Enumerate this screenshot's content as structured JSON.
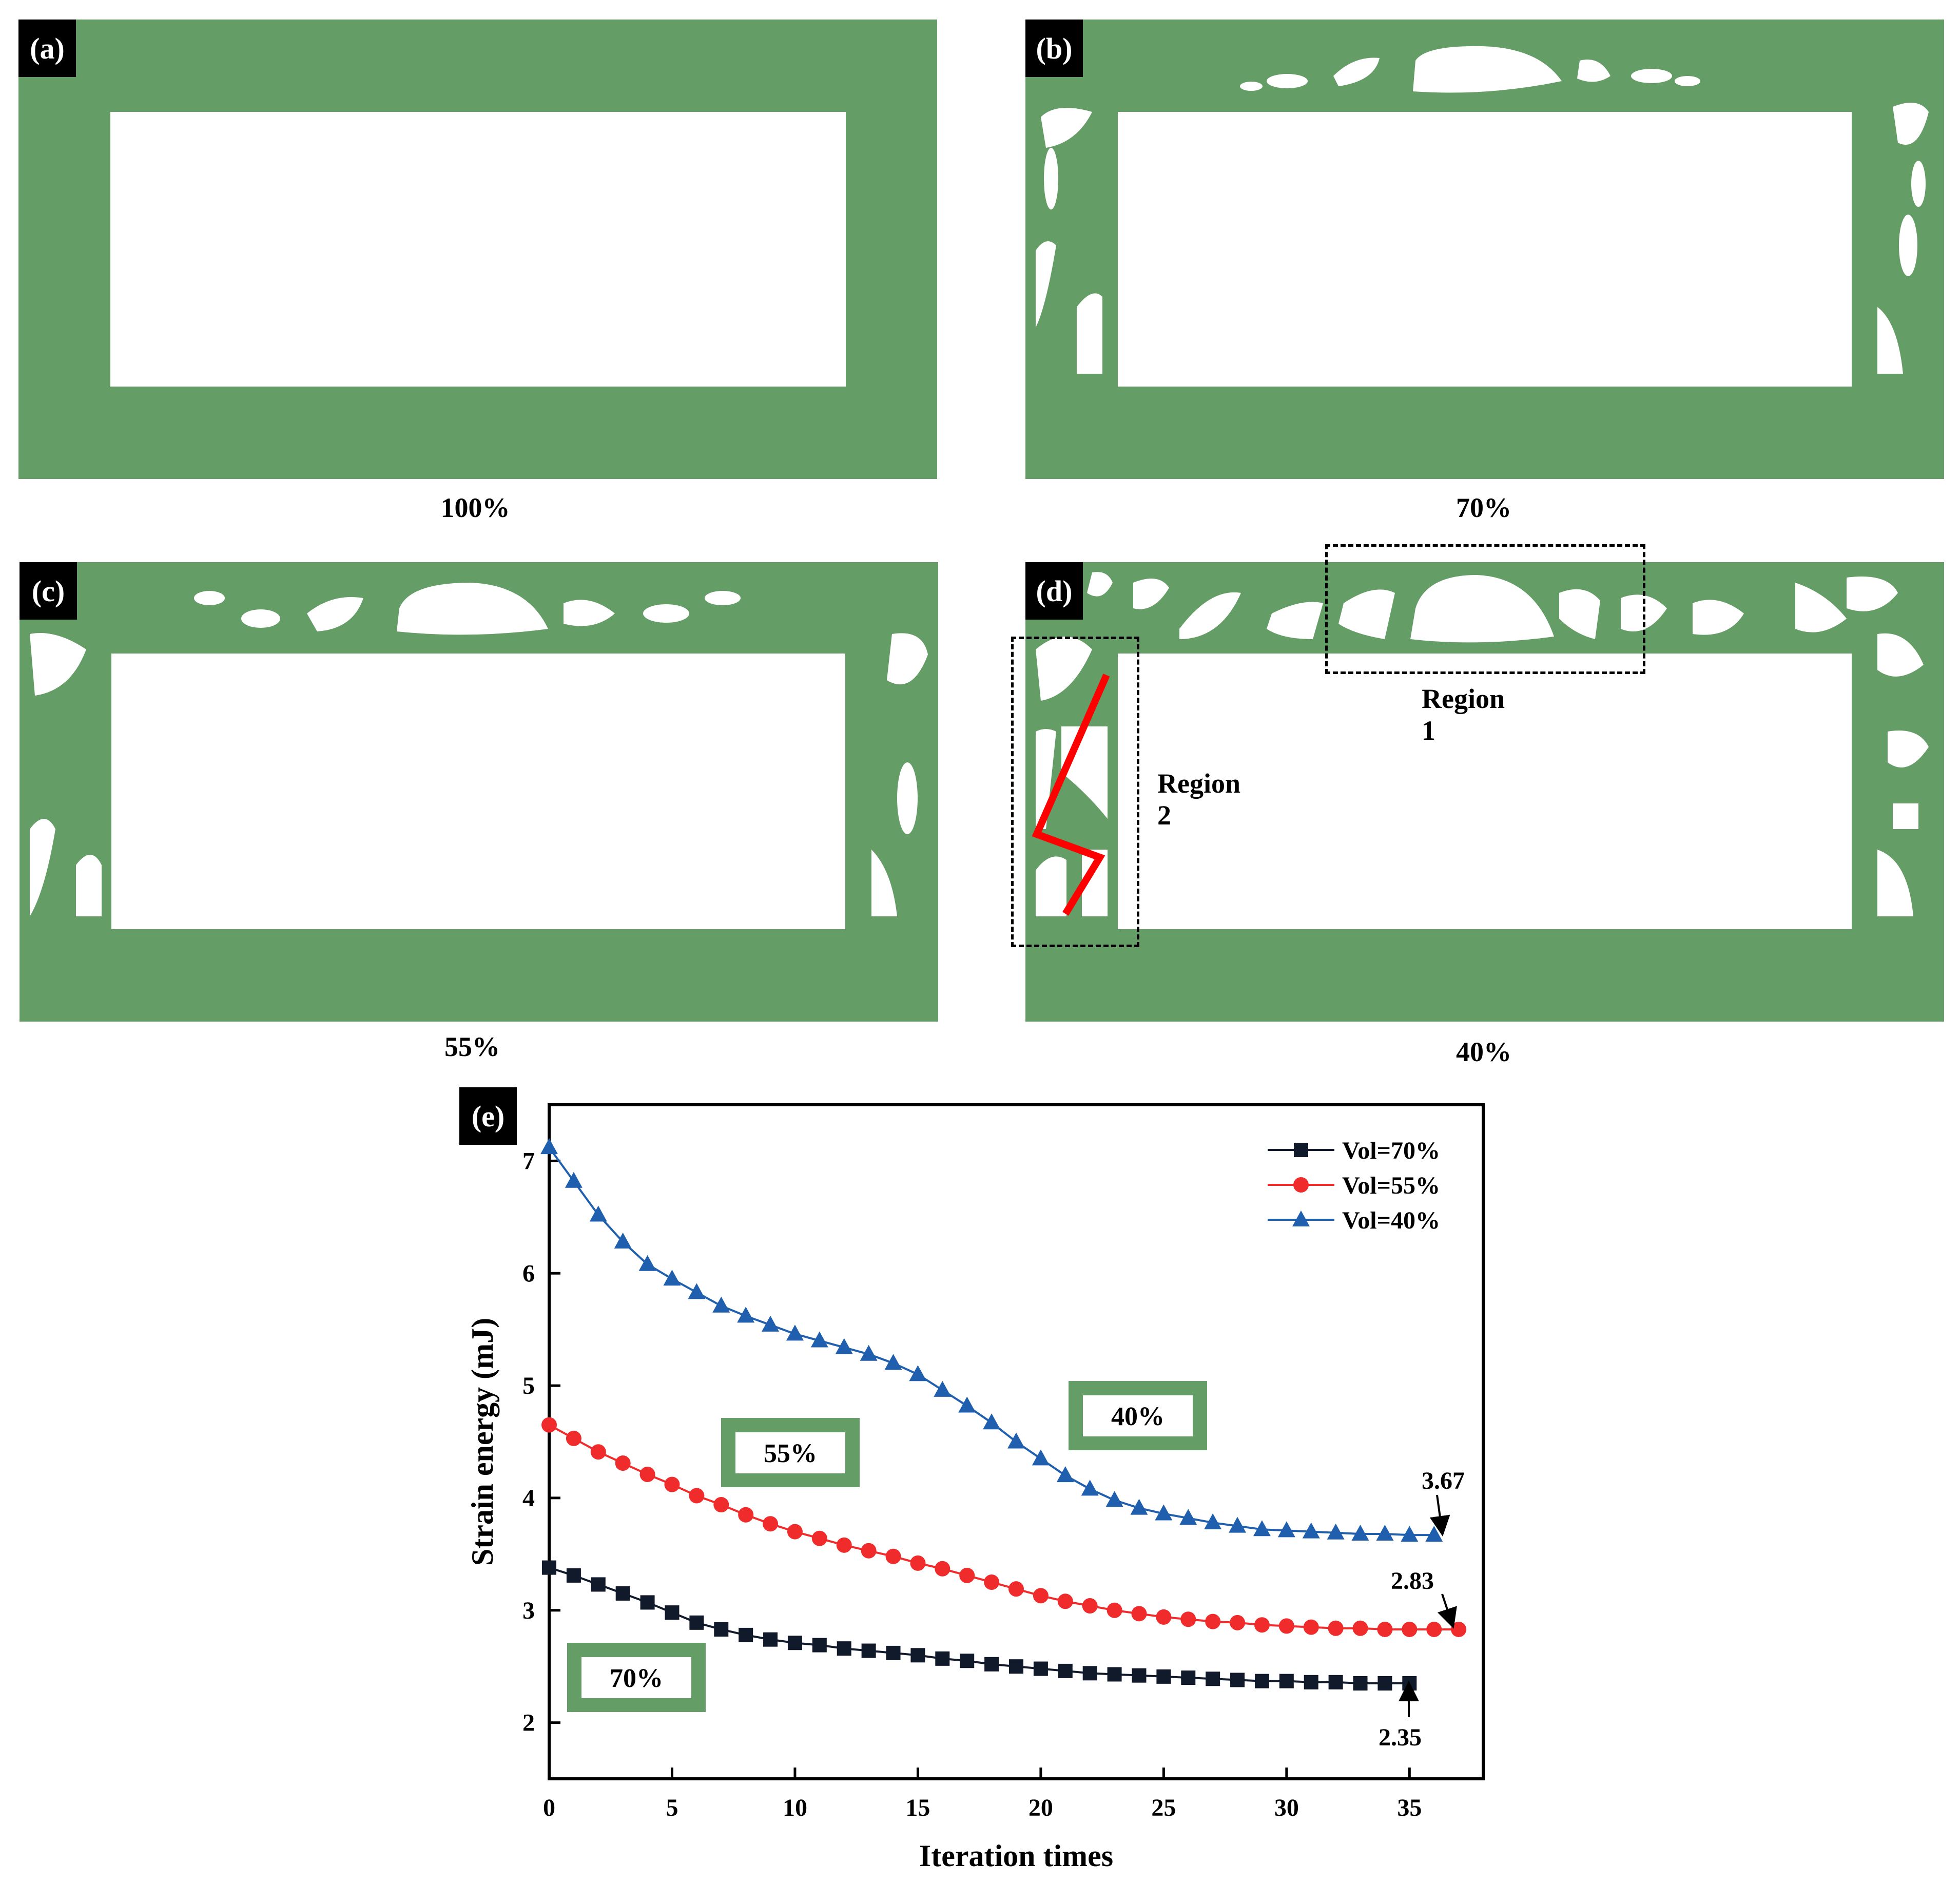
{
  "panels": [
    {
      "tag": "(a)",
      "caption": "100%"
    },
    {
      "tag": "(b)",
      "caption": "70%"
    },
    {
      "tag": "(c)",
      "caption": "55%"
    },
    {
      "tag": "(d)",
      "caption": "40%"
    }
  ],
  "regions": {
    "region1": "Region 1",
    "region2": "Region 2"
  },
  "colors": {
    "structure": "#659d66",
    "red_line": "#ff0000"
  },
  "chart_tag": "(e)",
  "chart_data": {
    "type": "line",
    "title": "",
    "xlabel": "Iteration times",
    "ylabel": "Strain energy (mJ)",
    "xlim": [
      0,
      38
    ],
    "ylim": [
      1.5,
      7.5
    ],
    "xticks": [
      0,
      5,
      10,
      15,
      20,
      25,
      30,
      35
    ],
    "yticks": [
      2,
      3,
      4,
      5,
      6,
      7
    ],
    "legend_position": "top-right",
    "series": [
      {
        "name": "Vol=70%",
        "color": "#111a2b",
        "marker": "square",
        "x": [
          0,
          1,
          2,
          3,
          4,
          5,
          6,
          7,
          8,
          9,
          10,
          11,
          12,
          13,
          14,
          15,
          16,
          17,
          18,
          19,
          20,
          21,
          22,
          23,
          24,
          25,
          26,
          27,
          28,
          29,
          30,
          31,
          32,
          33,
          34,
          35
        ],
        "y": [
          3.38,
          3.31,
          3.23,
          3.15,
          3.07,
          2.98,
          2.89,
          2.83,
          2.78,
          2.74,
          2.71,
          2.69,
          2.66,
          2.64,
          2.62,
          2.6,
          2.57,
          2.55,
          2.52,
          2.5,
          2.48,
          2.46,
          2.44,
          2.43,
          2.42,
          2.41,
          2.4,
          2.39,
          2.38,
          2.37,
          2.37,
          2.36,
          2.36,
          2.35,
          2.35,
          2.35
        ]
      },
      {
        "name": "Vol=55%",
        "color": "#ef2b2b",
        "marker": "circle",
        "x": [
          0,
          1,
          2,
          3,
          4,
          5,
          6,
          7,
          8,
          9,
          10,
          11,
          12,
          13,
          14,
          15,
          16,
          17,
          18,
          19,
          20,
          21,
          22,
          23,
          24,
          25,
          26,
          27,
          28,
          29,
          30,
          31,
          32,
          33,
          34,
          35,
          36,
          37
        ],
        "y": [
          4.65,
          4.53,
          4.41,
          4.31,
          4.21,
          4.12,
          4.02,
          3.94,
          3.85,
          3.77,
          3.7,
          3.64,
          3.58,
          3.53,
          3.48,
          3.42,
          3.37,
          3.31,
          3.25,
          3.19,
          3.13,
          3.08,
          3.04,
          3.0,
          2.97,
          2.94,
          2.92,
          2.9,
          2.89,
          2.87,
          2.86,
          2.85,
          2.84,
          2.84,
          2.83,
          2.83,
          2.83,
          2.83
        ]
      },
      {
        "name": "Vol=40%",
        "color": "#1f5fad",
        "marker": "triangle",
        "x": [
          0,
          1,
          2,
          3,
          4,
          5,
          6,
          7,
          8,
          9,
          10,
          11,
          12,
          13,
          14,
          15,
          16,
          17,
          18,
          19,
          20,
          21,
          22,
          23,
          24,
          25,
          26,
          27,
          28,
          29,
          30,
          31,
          32,
          33,
          34,
          35,
          36
        ],
        "y": [
          7.12,
          6.82,
          6.52,
          6.28,
          6.08,
          5.95,
          5.83,
          5.71,
          5.62,
          5.54,
          5.46,
          5.4,
          5.34,
          5.28,
          5.2,
          5.1,
          4.96,
          4.82,
          4.67,
          4.5,
          4.35,
          4.2,
          4.08,
          3.98,
          3.91,
          3.86,
          3.82,
          3.78,
          3.75,
          3.72,
          3.71,
          3.7,
          3.69,
          3.68,
          3.68,
          3.67,
          3.67
        ]
      }
    ],
    "annotations": [
      {
        "text": "3.67",
        "x": 36,
        "y": 3.67
      },
      {
        "text": "2.83",
        "x": 37,
        "y": 2.83
      },
      {
        "text": "2.35",
        "x": 35,
        "y": 2.35
      }
    ],
    "insets": [
      {
        "text": "70%"
      },
      {
        "text": "55%"
      },
      {
        "text": "40%"
      }
    ]
  }
}
